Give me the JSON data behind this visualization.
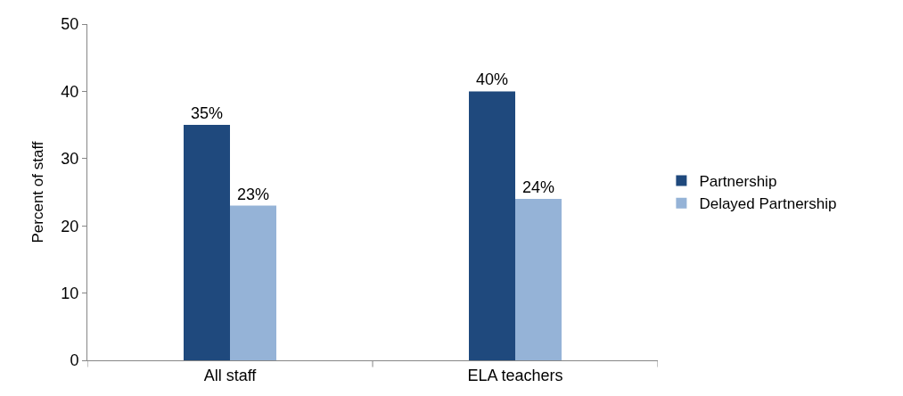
{
  "chart_data": {
    "type": "bar",
    "ylabel": "Percent of staff",
    "categories": [
      "All staff",
      "ELA teachers"
    ],
    "series": [
      {
        "name": "Partnership",
        "color": "#1f497d",
        "values": [
          35,
          40
        ],
        "value_labels": [
          "35%",
          "40%"
        ]
      },
      {
        "name": "Delayed Partnership",
        "color": "#95b3d7",
        "values": [
          23,
          24
        ],
        "value_labels": [
          "23%",
          "24%"
        ]
      }
    ],
    "ylim": [
      0,
      50
    ],
    "yticks": [
      0,
      10,
      20,
      30,
      40,
      50
    ],
    "legend": "right"
  }
}
